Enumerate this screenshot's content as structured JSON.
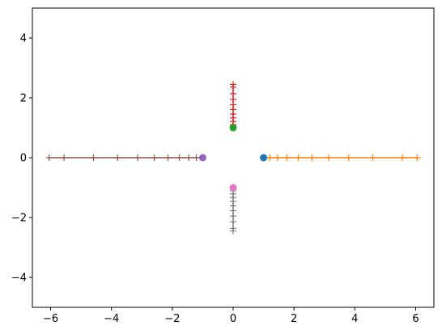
{
  "chart_data": {
    "type": "line",
    "title": "",
    "xlabel": "",
    "ylabel": "",
    "xlim": [
      -6.6,
      6.6
    ],
    "ylim": [
      -5,
      5
    ],
    "xticks": [
      -6,
      -4,
      -2,
      0,
      2,
      4,
      6
    ],
    "yticks": [
      -4,
      -2,
      0,
      2,
      4
    ],
    "xtick_labels": [
      "−6",
      "−4",
      "−2",
      "0",
      "2",
      "4",
      "6"
    ],
    "ytick_labels": [
      "−4",
      "−2",
      "0",
      "2",
      "4"
    ],
    "grid": false,
    "legend": "none",
    "points": [
      {
        "x": 1,
        "y": 0,
        "color": "#1f77b4"
      },
      {
        "x": 0,
        "y": 1,
        "color": "#2ca02c"
      },
      {
        "x": -1,
        "y": 0,
        "color": "#9467bd"
      },
      {
        "x": 0,
        "y": -1,
        "color": "#e377c2"
      }
    ],
    "series": [
      {
        "color": "#ff7f0e",
        "marker": "+",
        "x": [
          1.21,
          1.46,
          1.77,
          2.14,
          2.59,
          3.14,
          3.8,
          4.59,
          5.56,
          6.05
        ],
        "y": [
          0,
          0,
          0,
          0,
          0,
          0,
          0,
          0,
          0,
          0
        ]
      },
      {
        "color": "#d62728",
        "marker": "+",
        "x": [
          0,
          0,
          0,
          0,
          0,
          0,
          0,
          0,
          0,
          0
        ],
        "y": [
          1.1,
          1.21,
          1.33,
          1.46,
          1.61,
          1.77,
          1.95,
          2.14,
          2.36,
          2.45
        ]
      },
      {
        "color": "#8c564b",
        "marker": "+",
        "x": [
          -1.21,
          -1.46,
          -1.77,
          -2.14,
          -2.59,
          -3.14,
          -3.8,
          -4.59,
          -5.56,
          -6.05
        ],
        "y": [
          0,
          0,
          0,
          0,
          0,
          0,
          0,
          0,
          0,
          0
        ]
      },
      {
        "color": "#7f7f7f",
        "marker": "+",
        "x": [
          0,
          0,
          0,
          0,
          0,
          0,
          0,
          0,
          0,
          0
        ],
        "y": [
          -1.1,
          -1.21,
          -1.33,
          -1.46,
          -1.61,
          -1.77,
          -1.95,
          -2.14,
          -2.36,
          -2.45
        ]
      }
    ]
  }
}
